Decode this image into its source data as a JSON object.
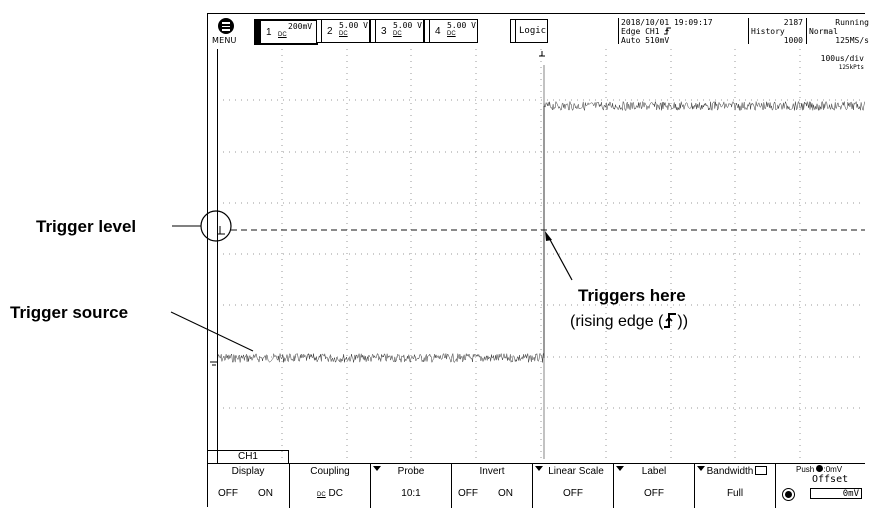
{
  "annotations": {
    "trigger_level": "Trigger level",
    "trigger_source": "Trigger source",
    "triggers_here": "Triggers here",
    "rising_edge_prefix": "(rising edge (",
    "rising_edge_suffix": "))"
  },
  "topbar": {
    "menu_label": "MENU",
    "channels": [
      {
        "num": "1",
        "value": "200mV",
        "coupling": "DC",
        "active": true
      },
      {
        "num": "2",
        "value": "5.00 V",
        "coupling": "DC"
      },
      {
        "num": "3",
        "value": "5.00 V",
        "coupling": "DC"
      },
      {
        "num": "4",
        "value": "5.00 V",
        "coupling": "DC"
      }
    ],
    "logic_label": "Logic",
    "datetime": "2018/10/01 19:09:17",
    "trigger_mode": "Edge CH1",
    "trigger_auto": "Auto 510mV",
    "acq_count": "2187",
    "acq_state": "Running",
    "history_label": "History",
    "history_value": "1000",
    "acq_mode": "Normal",
    "sample_rate": "125MS/s",
    "timebase": "100us/div",
    "record_length": "125kPts"
  },
  "softkeys": {
    "channel_tab": "CH1",
    "items": [
      {
        "title": "Display",
        "value_a": "OFF",
        "value_b": "ON"
      },
      {
        "title": "Coupling",
        "value": "DC"
      },
      {
        "title": "Probe",
        "value": "10:1",
        "menu": true
      },
      {
        "title": "Invert",
        "value_a": "OFF",
        "value_b": "ON"
      },
      {
        "title": "Linear Scale",
        "value": "OFF",
        "menu": true
      },
      {
        "title": "Label",
        "value": "OFF",
        "menu": true
      },
      {
        "title": "Bandwidth",
        "value": "Full",
        "menu": true
      },
      {
        "title_a": "Push",
        "title_b": ":0mV",
        "title_c": "Offset",
        "value": "0mV"
      }
    ]
  },
  "icons": {
    "rising_edge": "rising-edge-icon",
    "menu": "menu-icon",
    "ground": "ground-marker-icon",
    "trigger_pos": "trigger-position-icon"
  }
}
